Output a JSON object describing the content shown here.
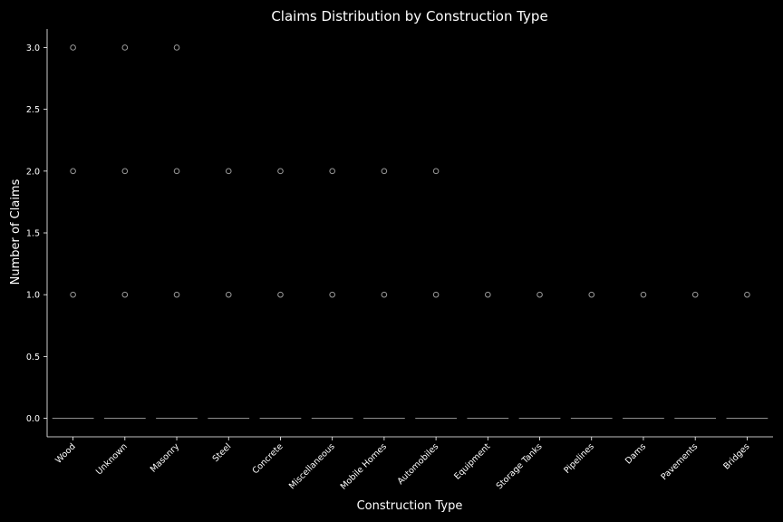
{
  "chart_data": {
    "type": "box",
    "title": "Claims Distribution by Construction Type",
    "xlabel": "Construction Type",
    "ylabel": "Number of Claims",
    "categories": [
      "Wood",
      "Unknown",
      "Masonry",
      "Steel",
      "Concrete",
      "Miscellaneous",
      "Mobile Homes",
      "Automobiles",
      "Equipment",
      "Storage Tanks",
      "Pipelines",
      "Dams",
      "Pavements",
      "Bridges"
    ],
    "median": [
      0,
      0,
      0,
      0,
      0,
      0,
      0,
      0,
      0,
      0,
      0,
      0,
      0,
      0
    ],
    "outliers": [
      [
        1,
        2,
        3
      ],
      [
        1,
        2,
        3
      ],
      [
        1,
        2,
        3
      ],
      [
        1,
        2
      ],
      [
        1,
        2
      ],
      [
        1,
        2
      ],
      [
        1,
        2
      ],
      [
        1,
        2
      ],
      [
        1
      ],
      [
        1
      ],
      [
        1
      ],
      [
        1
      ],
      [
        1
      ],
      [
        1
      ]
    ],
    "yticks": [
      "0.0",
      "0.5",
      "1.0",
      "1.5",
      "2.0",
      "2.5",
      "3.0"
    ],
    "ylim": [
      -0.15,
      3.15
    ],
    "grid": false,
    "colors": {
      "background": "#000000",
      "axis": "#ffffff",
      "box": "#888888",
      "outlier": "#9a9a9a"
    }
  }
}
